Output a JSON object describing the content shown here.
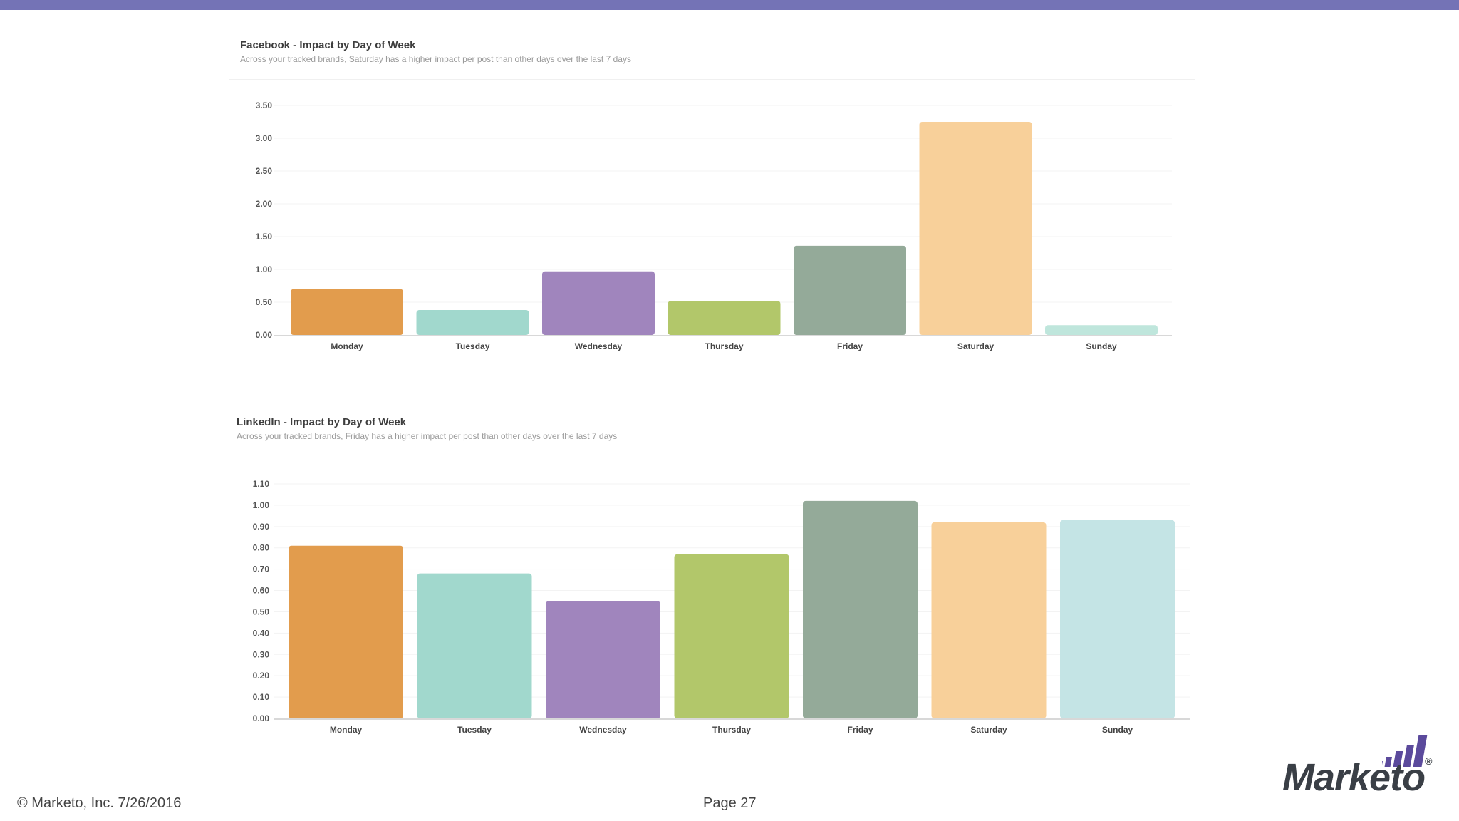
{
  "colors": {
    "top_bar": "#7473b6",
    "monday": "#e29c4d",
    "tuesday": "#a1d8cd",
    "wednesday": "#a085bd",
    "thursday": "#b2c76a",
    "friday": "#94aa99",
    "saturday": "#f8d09a",
    "sunday_facebook": "#bfe6dc",
    "sunday_linkedin": "#c4e4e5",
    "logo_bars": "#5b4a9c"
  },
  "charts": {
    "facebook": {
      "title": "Facebook - Impact by Day of Week",
      "subtitle": "Across your tracked brands, Saturday has a higher impact per post than other days over the last 7 days"
    },
    "linkedin": {
      "title": "LinkedIn - Impact by Day of Week",
      "subtitle": "Across your tracked brands, Friday has a higher impact per post than other days over the last 7 days"
    }
  },
  "chart_data": [
    {
      "type": "bar",
      "title": "Facebook - Impact by Day of Week",
      "subtitle": "Across your tracked brands, Saturday has a higher impact per post than other days over the last 7 days",
      "categories": [
        "Monday",
        "Tuesday",
        "Wednesday",
        "Thursday",
        "Friday",
        "Saturday",
        "Sunday"
      ],
      "values": [
        0.7,
        0.38,
        0.97,
        0.52,
        1.36,
        3.25,
        0.15
      ],
      "yticks": [
        "0.00",
        "0.50",
        "1.00",
        "1.50",
        "2.00",
        "2.50",
        "3.00",
        "3.50"
      ],
      "ylim": [
        0,
        3.5
      ],
      "grid": true,
      "legend": "none"
    },
    {
      "type": "bar",
      "title": "LinkedIn - Impact by Day of Week",
      "subtitle": "Across your tracked brands, Friday has a higher impact per post than other days over the last 7 days",
      "categories": [
        "Monday",
        "Tuesday",
        "Wednesday",
        "Thursday",
        "Friday",
        "Saturday",
        "Sunday"
      ],
      "values": [
        0.81,
        0.68,
        0.55,
        0.77,
        1.02,
        0.92,
        0.93
      ],
      "yticks": [
        "0.00",
        "0.10",
        "0.20",
        "0.30",
        "0.40",
        "0.50",
        "0.60",
        "0.70",
        "0.80",
        "0.90",
        "1.00",
        "1.10"
      ],
      "ylim": [
        0,
        1.1
      ],
      "grid": true,
      "legend": "none"
    }
  ],
  "footer": {
    "copyright": "© Marketo, Inc.  7/26/2016",
    "page": "Page 27"
  },
  "logo": {
    "wordmark": "Marketo",
    "registered": "®"
  }
}
